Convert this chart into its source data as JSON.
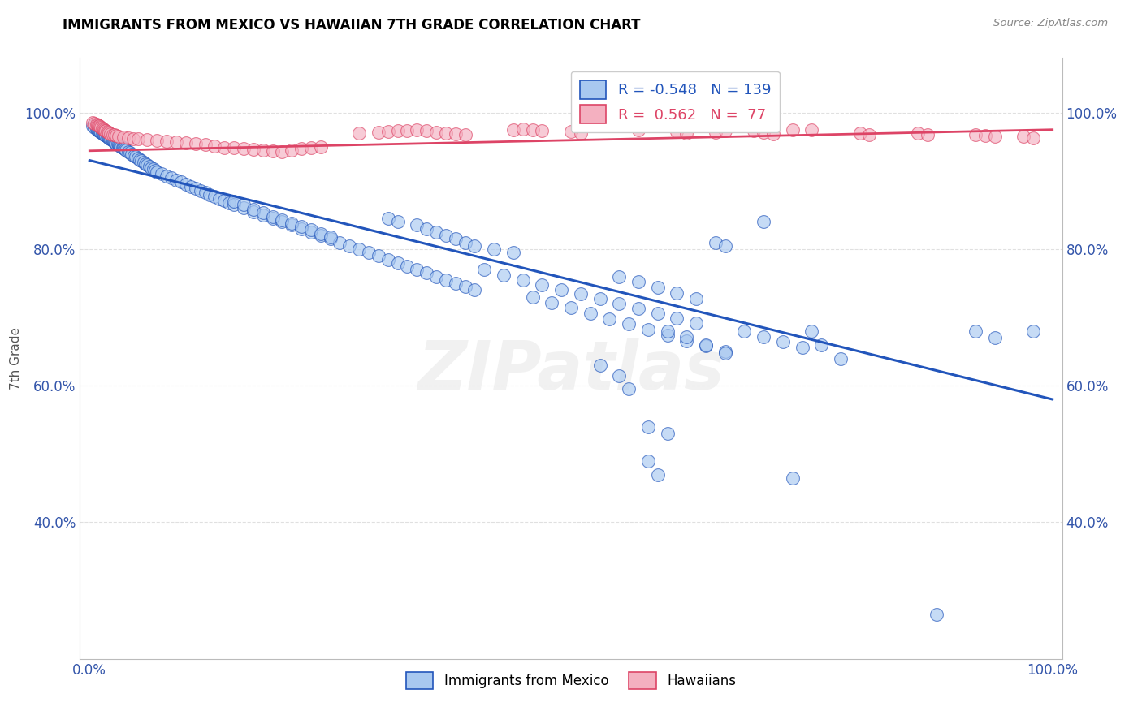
{
  "title": "IMMIGRANTS FROM MEXICO VS HAWAIIAN 7TH GRADE CORRELATION CHART",
  "source": "Source: ZipAtlas.com",
  "ylabel": "7th Grade",
  "r_blue": -0.548,
  "n_blue": 139,
  "r_pink": 0.562,
  "n_pink": 77,
  "blue_color": "#A8C8F0",
  "pink_color": "#F4B0C0",
  "blue_line_color": "#2255BB",
  "pink_line_color": "#DD4466",
  "background_color": "#FFFFFF",
  "watermark": "ZIPatlas",
  "blue_scatter": [
    [
      0.003,
      0.98
    ],
    [
      0.005,
      0.978
    ],
    [
      0.007,
      0.976
    ],
    [
      0.008,
      0.975
    ],
    [
      0.009,
      0.974
    ],
    [
      0.01,
      0.973
    ],
    [
      0.011,
      0.972
    ],
    [
      0.012,
      0.971
    ],
    [
      0.013,
      0.97
    ],
    [
      0.014,
      0.969
    ],
    [
      0.015,
      0.968
    ],
    [
      0.016,
      0.967
    ],
    [
      0.017,
      0.966
    ],
    [
      0.018,
      0.965
    ],
    [
      0.019,
      0.964
    ],
    [
      0.02,
      0.963
    ],
    [
      0.021,
      0.962
    ],
    [
      0.022,
      0.961
    ],
    [
      0.023,
      0.96
    ],
    [
      0.024,
      0.959
    ],
    [
      0.025,
      0.958
    ],
    [
      0.026,
      0.957
    ],
    [
      0.027,
      0.956
    ],
    [
      0.028,
      0.955
    ],
    [
      0.029,
      0.954
    ],
    [
      0.03,
      0.953
    ],
    [
      0.031,
      0.952
    ],
    [
      0.032,
      0.951
    ],
    [
      0.033,
      0.95
    ],
    [
      0.034,
      0.949
    ],
    [
      0.035,
      0.948
    ],
    [
      0.036,
      0.947
    ],
    [
      0.037,
      0.946
    ],
    [
      0.038,
      0.945
    ],
    [
      0.04,
      0.943
    ],
    [
      0.042,
      0.941
    ],
    [
      0.044,
      0.939
    ],
    [
      0.046,
      0.937
    ],
    [
      0.048,
      0.935
    ],
    [
      0.05,
      0.933
    ],
    [
      0.052,
      0.931
    ],
    [
      0.054,
      0.929
    ],
    [
      0.056,
      0.927
    ],
    [
      0.058,
      0.925
    ],
    [
      0.06,
      0.923
    ],
    [
      0.062,
      0.921
    ],
    [
      0.064,
      0.919
    ],
    [
      0.066,
      0.917
    ],
    [
      0.068,
      0.915
    ],
    [
      0.07,
      0.913
    ],
    [
      0.075,
      0.91
    ],
    [
      0.08,
      0.907
    ],
    [
      0.085,
      0.904
    ],
    [
      0.09,
      0.901
    ],
    [
      0.095,
      0.898
    ],
    [
      0.1,
      0.895
    ],
    [
      0.105,
      0.892
    ],
    [
      0.11,
      0.889
    ],
    [
      0.115,
      0.886
    ],
    [
      0.12,
      0.883
    ],
    [
      0.125,
      0.88
    ],
    [
      0.13,
      0.877
    ],
    [
      0.135,
      0.874
    ],
    [
      0.14,
      0.871
    ],
    [
      0.145,
      0.868
    ],
    [
      0.15,
      0.865
    ],
    [
      0.16,
      0.86
    ],
    [
      0.17,
      0.855
    ],
    [
      0.18,
      0.85
    ],
    [
      0.19,
      0.845
    ],
    [
      0.2,
      0.84
    ],
    [
      0.21,
      0.835
    ],
    [
      0.22,
      0.83
    ],
    [
      0.23,
      0.825
    ],
    [
      0.24,
      0.82
    ],
    [
      0.25,
      0.815
    ],
    [
      0.26,
      0.81
    ],
    [
      0.27,
      0.805
    ],
    [
      0.28,
      0.8
    ],
    [
      0.29,
      0.795
    ],
    [
      0.3,
      0.79
    ],
    [
      0.31,
      0.785
    ],
    [
      0.32,
      0.78
    ],
    [
      0.33,
      0.775
    ],
    [
      0.34,
      0.77
    ],
    [
      0.35,
      0.765
    ],
    [
      0.36,
      0.76
    ],
    [
      0.37,
      0.755
    ],
    [
      0.38,
      0.75
    ],
    [
      0.39,
      0.745
    ],
    [
      0.4,
      0.74
    ],
    [
      0.15,
      0.87
    ],
    [
      0.16,
      0.865
    ],
    [
      0.17,
      0.858
    ],
    [
      0.18,
      0.853
    ],
    [
      0.19,
      0.848
    ],
    [
      0.2,
      0.843
    ],
    [
      0.21,
      0.838
    ],
    [
      0.22,
      0.833
    ],
    [
      0.23,
      0.828
    ],
    [
      0.24,
      0.823
    ],
    [
      0.25,
      0.818
    ],
    [
      0.31,
      0.845
    ],
    [
      0.32,
      0.84
    ],
    [
      0.34,
      0.835
    ],
    [
      0.35,
      0.83
    ],
    [
      0.36,
      0.825
    ],
    [
      0.37,
      0.82
    ],
    [
      0.38,
      0.815
    ],
    [
      0.39,
      0.81
    ],
    [
      0.4,
      0.805
    ],
    [
      0.42,
      0.8
    ],
    [
      0.44,
      0.795
    ],
    [
      0.41,
      0.77
    ],
    [
      0.43,
      0.762
    ],
    [
      0.45,
      0.755
    ],
    [
      0.47,
      0.748
    ],
    [
      0.49,
      0.741
    ],
    [
      0.51,
      0.734
    ],
    [
      0.53,
      0.727
    ],
    [
      0.55,
      0.72
    ],
    [
      0.57,
      0.713
    ],
    [
      0.59,
      0.706
    ],
    [
      0.61,
      0.699
    ],
    [
      0.63,
      0.692
    ],
    [
      0.46,
      0.73
    ],
    [
      0.48,
      0.722
    ],
    [
      0.5,
      0.714
    ],
    [
      0.52,
      0.706
    ],
    [
      0.54,
      0.698
    ],
    [
      0.56,
      0.69
    ],
    [
      0.58,
      0.682
    ],
    [
      0.6,
      0.674
    ],
    [
      0.62,
      0.666
    ],
    [
      0.64,
      0.658
    ],
    [
      0.66,
      0.65
    ],
    [
      0.55,
      0.76
    ],
    [
      0.57,
      0.752
    ],
    [
      0.59,
      0.744
    ],
    [
      0.61,
      0.736
    ],
    [
      0.63,
      0.728
    ],
    [
      0.65,
      0.81
    ],
    [
      0.66,
      0.805
    ],
    [
      0.68,
      0.68
    ],
    [
      0.7,
      0.672
    ],
    [
      0.72,
      0.664
    ],
    [
      0.74,
      0.656
    ],
    [
      0.92,
      0.68
    ],
    [
      0.94,
      0.67
    ],
    [
      0.53,
      0.63
    ],
    [
      0.55,
      0.615
    ],
    [
      0.56,
      0.595
    ],
    [
      0.6,
      0.68
    ],
    [
      0.62,
      0.672
    ],
    [
      0.64,
      0.66
    ],
    [
      0.66,
      0.648
    ],
    [
      0.75,
      0.68
    ],
    [
      0.76,
      0.66
    ],
    [
      0.78,
      0.64
    ],
    [
      0.7,
      0.84
    ],
    [
      0.98,
      0.68
    ],
    [
      0.58,
      0.54
    ],
    [
      0.6,
      0.53
    ],
    [
      0.58,
      0.49
    ],
    [
      0.59,
      0.47
    ],
    [
      0.73,
      0.465
    ],
    [
      0.88,
      0.265
    ]
  ],
  "pink_scatter": [
    [
      0.003,
      0.985
    ],
    [
      0.005,
      0.984
    ],
    [
      0.007,
      0.983
    ],
    [
      0.008,
      0.982
    ],
    [
      0.009,
      0.981
    ],
    [
      0.01,
      0.98
    ],
    [
      0.011,
      0.979
    ],
    [
      0.012,
      0.978
    ],
    [
      0.013,
      0.977
    ],
    [
      0.014,
      0.976
    ],
    [
      0.015,
      0.975
    ],
    [
      0.016,
      0.974
    ],
    [
      0.017,
      0.973
    ],
    [
      0.018,
      0.972
    ],
    [
      0.019,
      0.971
    ],
    [
      0.02,
      0.97
    ],
    [
      0.022,
      0.969
    ],
    [
      0.024,
      0.968
    ],
    [
      0.026,
      0.967
    ],
    [
      0.028,
      0.966
    ],
    [
      0.03,
      0.965
    ],
    [
      0.035,
      0.964
    ],
    [
      0.04,
      0.963
    ],
    [
      0.045,
      0.962
    ],
    [
      0.05,
      0.961
    ],
    [
      0.06,
      0.96
    ],
    [
      0.07,
      0.959
    ],
    [
      0.08,
      0.958
    ],
    [
      0.09,
      0.957
    ],
    [
      0.1,
      0.956
    ],
    [
      0.11,
      0.955
    ],
    [
      0.12,
      0.953
    ],
    [
      0.13,
      0.951
    ],
    [
      0.14,
      0.949
    ],
    [
      0.15,
      0.948
    ],
    [
      0.16,
      0.947
    ],
    [
      0.17,
      0.946
    ],
    [
      0.18,
      0.945
    ],
    [
      0.19,
      0.944
    ],
    [
      0.2,
      0.943
    ],
    [
      0.21,
      0.945
    ],
    [
      0.22,
      0.947
    ],
    [
      0.23,
      0.949
    ],
    [
      0.24,
      0.95
    ],
    [
      0.28,
      0.97
    ],
    [
      0.3,
      0.971
    ],
    [
      0.31,
      0.972
    ],
    [
      0.32,
      0.973
    ],
    [
      0.33,
      0.974
    ],
    [
      0.34,
      0.975
    ],
    [
      0.35,
      0.973
    ],
    [
      0.36,
      0.971
    ],
    [
      0.37,
      0.97
    ],
    [
      0.38,
      0.969
    ],
    [
      0.39,
      0.968
    ],
    [
      0.44,
      0.975
    ],
    [
      0.45,
      0.976
    ],
    [
      0.46,
      0.975
    ],
    [
      0.47,
      0.974
    ],
    [
      0.5,
      0.972
    ],
    [
      0.51,
      0.97
    ],
    [
      0.57,
      0.975
    ],
    [
      0.61,
      0.972
    ],
    [
      0.62,
      0.97
    ],
    [
      0.65,
      0.971
    ],
    [
      0.66,
      0.973
    ],
    [
      0.69,
      0.974
    ],
    [
      0.7,
      0.971
    ],
    [
      0.71,
      0.969
    ],
    [
      0.73,
      0.975
    ],
    [
      0.75,
      0.975
    ],
    [
      0.8,
      0.97
    ],
    [
      0.81,
      0.968
    ],
    [
      0.86,
      0.97
    ],
    [
      0.87,
      0.968
    ],
    [
      0.92,
      0.968
    ],
    [
      0.93,
      0.966
    ],
    [
      0.94,
      0.965
    ],
    [
      0.97,
      0.965
    ],
    [
      0.98,
      0.963
    ]
  ],
  "blue_trendline_x": [
    0.0,
    1.0
  ],
  "blue_trendline_y": [
    0.93,
    0.58
  ],
  "pink_trendline_x": [
    0.0,
    1.0
  ],
  "pink_trendline_y": [
    0.944,
    0.975
  ],
  "xlim": [
    -0.01,
    1.01
  ],
  "ylim": [
    0.2,
    1.08
  ],
  "yticks": [
    0.4,
    0.6,
    0.8,
    1.0
  ],
  "ytick_labels_left": [
    "40.0%",
    "60.0%",
    "80.0%",
    "100.0%"
  ],
  "ytick_labels_right": [
    "40.0%",
    "60.0%",
    "80.0%",
    "100.0%"
  ],
  "xtick_labels": [
    "0.0%",
    "100.0%"
  ],
  "xtick_positions": [
    0.0,
    1.0
  ],
  "grid_color": "#DDDDDD"
}
